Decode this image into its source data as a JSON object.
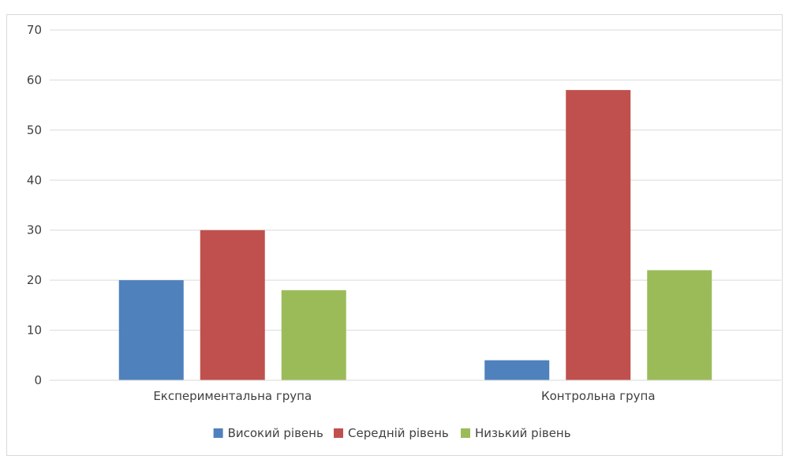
{
  "chart_data": {
    "type": "bar",
    "title": "",
    "xlabel": "",
    "ylabel": "",
    "categories": [
      "Експериментальна група",
      "Контрольна група"
    ],
    "series": [
      {
        "name": "Високий рівень",
        "values": [
          20,
          4
        ],
        "color": "#4f81bd"
      },
      {
        "name": "Середній рівень",
        "values": [
          30,
          58
        ],
        "color": "#c0504d"
      },
      {
        "name": "Низький рівень",
        "values": [
          18,
          22
        ],
        "color": "#9bbb59"
      }
    ],
    "ylim": [
      0,
      70
    ],
    "yticks": [
      0,
      10,
      20,
      30,
      40,
      50,
      60,
      70
    ],
    "grid": true,
    "legend_position": "bottom"
  }
}
